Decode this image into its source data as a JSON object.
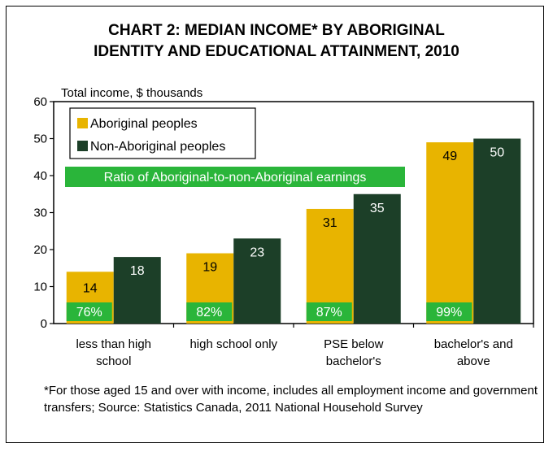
{
  "chart_data": {
    "type": "bar",
    "title_line1": "CHART 2: MEDIAN INCOME* BY ABORIGINAL",
    "title_line2": "IDENTITY AND EDUCATIONAL ATTAINMENT, 2010",
    "ylabel": "Total income, $ thousands",
    "ylim": [
      0,
      60
    ],
    "yticks": [
      "0",
      "10",
      "20",
      "30",
      "40",
      "50",
      "60"
    ],
    "categories": [
      [
        "less than high",
        "school"
      ],
      [
        "high school only"
      ],
      [
        "PSE below",
        "bachelor's"
      ],
      [
        "bachelor's and",
        "above"
      ]
    ],
    "series": [
      {
        "name": "Aboriginal peoples",
        "values": [
          14,
          19,
          31,
          49
        ],
        "color": "#e8b400"
      },
      {
        "name": "Non-Aboriginal peoples",
        "values": [
          18,
          23,
          35,
          50
        ],
        "color": "#1c3f28"
      }
    ],
    "ratio_label": "Ratio of Aboriginal-to-non-Aboriginal earnings",
    "ratios": [
      "76%",
      "82%",
      "87%",
      "99%"
    ],
    "ratio_color": "#2ab53a",
    "legend_position": "top-left",
    "grid": false
  },
  "footnote": "*For those aged 15 and over with income, includes all employment income and government transfers; Source: Statistics Canada, 2011 National Household Survey"
}
